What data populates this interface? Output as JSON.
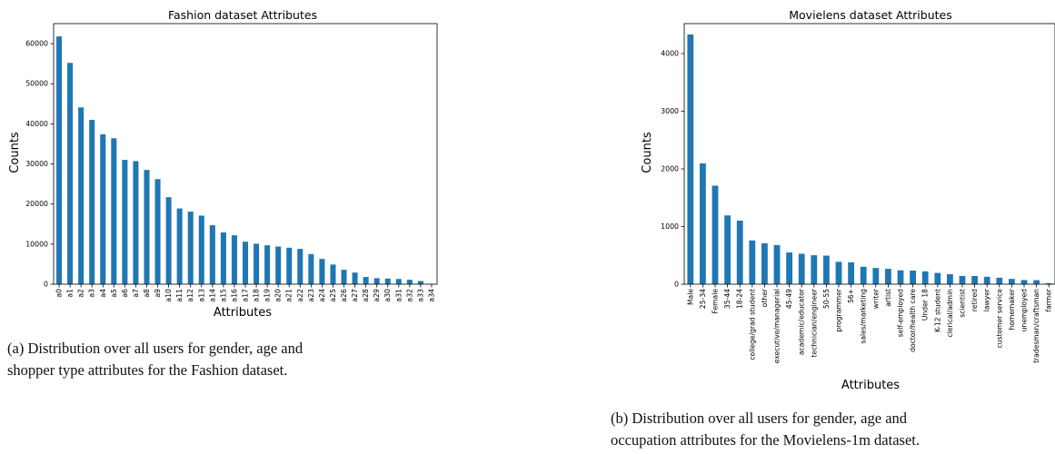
{
  "colors": {
    "bar": "#1f77b4",
    "axis": "#000000",
    "background": "#ffffff"
  },
  "chart_data": [
    {
      "type": "bar",
      "title": "Fashion dataset Attributes",
      "xlabel": "Attributes",
      "ylabel": "Counts",
      "ylim": [
        0,
        65000
      ],
      "yticks": [
        0,
        10000,
        20000,
        30000,
        40000,
        50000,
        60000
      ],
      "ytick_labels": [
        "0",
        "10000",
        "20000",
        "30000",
        "40000",
        "50000",
        "60000"
      ],
      "grid": false,
      "categories": [
        "a0",
        "a1",
        "a2",
        "a3",
        "a4",
        "a5",
        "a6",
        "a7",
        "a8",
        "a9",
        "a10",
        "a11",
        "a12",
        "a13",
        "a14",
        "a15",
        "a16",
        "a17",
        "a18",
        "a19",
        "a20",
        "a21",
        "a22",
        "a23",
        "a24",
        "a25",
        "a26",
        "a27",
        "a28",
        "a29",
        "a30",
        "a31",
        "a32",
        "a33",
        "a34"
      ],
      "values": [
        61800,
        55200,
        44100,
        41000,
        37400,
        36400,
        31000,
        30700,
        28500,
        26200,
        21700,
        18900,
        18100,
        17100,
        14700,
        12900,
        12200,
        10600,
        10100,
        9700,
        9400,
        9100,
        8800,
        7500,
        6300,
        4900,
        3600,
        2900,
        1800,
        1500,
        1400,
        1300,
        1100,
        800,
        100
      ]
    },
    {
      "type": "bar",
      "title": "Movielens dataset Attributes",
      "xlabel": "Attributes",
      "ylabel": "Counts",
      "ylim": [
        0,
        4520
      ],
      "yticks": [
        0,
        1000,
        2000,
        3000,
        4000
      ],
      "ytick_labels": [
        "0",
        "1000",
        "2000",
        "3000",
        "4000"
      ],
      "grid": false,
      "categories": [
        "Male",
        "25-34",
        "Female",
        "35-44",
        "18-24",
        "college/grad student",
        "other",
        "executive/managerial",
        "45-49",
        "academic/educator",
        "technician/engineer",
        "50-55",
        "programmer",
        "56+",
        "sales/marketing",
        "writer",
        "artist",
        "self-employed",
        "doctor/health care",
        "Under 18",
        "K-12 student",
        "clerical/admin",
        "scientist",
        "retired",
        "lawyer",
        "customer service",
        "homemaker",
        "unemployed",
        "tradesman/craftsman",
        "farmer"
      ],
      "values": [
        4331,
        2096,
        1709,
        1193,
        1103,
        759,
        711,
        679,
        550,
        528,
        502,
        496,
        388,
        380,
        302,
        281,
        267,
        241,
        236,
        222,
        195,
        173,
        144,
        142,
        129,
        112,
        92,
        72,
        70,
        17
      ]
    }
  ],
  "captions": {
    "a": [
      "(a) Distribution over all users for gender, age and",
      "shopper type attributes for the Fashion dataset."
    ],
    "b": [
      "(b) Distribution over all users for gender, age and",
      "occupation attributes for the Movielens-1m dataset."
    ]
  }
}
